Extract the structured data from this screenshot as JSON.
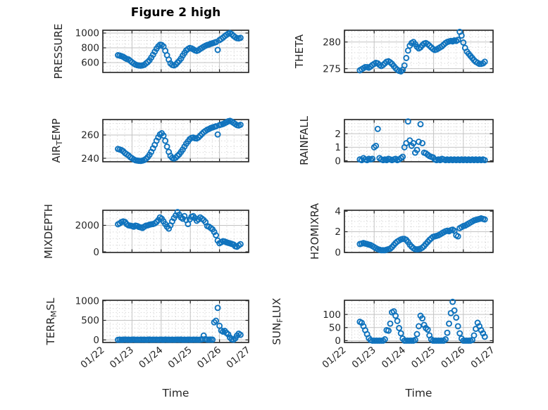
{
  "title": "Figure 2 high",
  "style": {
    "marker_color": "#1073BD",
    "axis_color": "#202020",
    "major_grid_color": "#c3c3c3",
    "minor_grid_color": "#c9c9c9",
    "text_color": "#262626",
    "background": "#ffffff"
  },
  "chart_data": {
    "type": "scatter",
    "marker": "open-circle",
    "xlabel": "Time",
    "x_tick_labels": [
      "01/22",
      "01/23",
      "01/24",
      "01/25",
      "01/26",
      "01/27"
    ],
    "x_tick_positions": [
      0,
      1,
      2,
      3,
      4,
      5
    ],
    "xlim": [
      0,
      5
    ],
    "x_unit": "days after 01/22",
    "grid": "major solid + minor dotted",
    "x": [
      0.52,
      0.58,
      0.64,
      0.7,
      0.76,
      0.82,
      0.88,
      0.94,
      1.0,
      1.06,
      1.12,
      1.18,
      1.24,
      1.3,
      1.36,
      1.42,
      1.48,
      1.54,
      1.6,
      1.66,
      1.72,
      1.78,
      1.84,
      1.9,
      1.96,
      2.02,
      2.08,
      2.14,
      2.2,
      2.26,
      2.32,
      2.38,
      2.44,
      2.5,
      2.56,
      2.62,
      2.68,
      2.74,
      2.8,
      2.86,
      2.92,
      2.98,
      3.04,
      3.1,
      3.16,
      3.22,
      3.28,
      3.34,
      3.4,
      3.46,
      3.52,
      3.58,
      3.64,
      3.7,
      3.76,
      3.82,
      3.88,
      3.94,
      4.0,
      4.06,
      4.12,
      4.18,
      4.24,
      4.3,
      4.36,
      4.42,
      4.48,
      4.54,
      4.6,
      4.66,
      4.72
    ],
    "subplots": [
      {
        "id": "pressure",
        "name": "PRESSURE",
        "row": 0,
        "col": 0,
        "ylabel_parts": [
          [
            "PRESSURE",
            false
          ]
        ],
        "yticks": [
          600,
          800,
          1000
        ],
        "ylim": [
          467,
          1038
        ],
        "minor_step": 50,
        "y": [
          700,
          695,
          688,
          678,
          662,
          650,
          643,
          625,
          605,
          588,
          574,
          565,
          560,
          558,
          562,
          570,
          590,
          608,
          632,
          668,
          706,
          748,
          788,
          820,
          842,
          838,
          818,
          760,
          700,
          640,
          590,
          568,
          562,
          575,
          600,
          625,
          655,
          695,
          730,
          765,
          785,
          798,
          792,
          780,
          766,
          758,
          768,
          786,
          800,
          815,
          828,
          838,
          845,
          855,
          862,
          870,
          878,
          772,
          905,
          920,
          938,
          958,
          975,
          990,
          1000,
          985,
          962,
          945,
          930,
          928,
          935
        ]
      },
      {
        "id": "theta",
        "name": "THETA",
        "row": 0,
        "col": 1,
        "ylabel_parts": [
          [
            "THETA",
            false
          ]
        ],
        "yticks": [
          275,
          280
        ],
        "ylim": [
          274.3,
          282.2
        ],
        "minor_step": 1,
        "y": [
          274.7,
          274.9,
          275.1,
          275.3,
          275.3,
          275.2,
          275.4,
          275.7,
          275.9,
          276.1,
          276.0,
          275.7,
          275.5,
          275.7,
          276.0,
          276.3,
          276.4,
          276.2,
          275.9,
          275.5,
          275.1,
          274.8,
          274.6,
          274.5,
          274.8,
          275.6,
          277.0,
          278.4,
          279.3,
          279.8,
          280.0,
          279.6,
          279.1,
          278.8,
          279.0,
          279.4,
          279.7,
          279.8,
          279.6,
          279.3,
          279.0,
          278.7,
          278.5,
          278.6,
          278.8,
          279.0,
          279.2,
          279.5,
          279.8,
          280.0,
          280.1,
          280.2,
          280.1,
          280.3,
          280.2,
          280.4,
          281.9,
          281.2,
          279.9,
          278.9,
          278.2,
          277.8,
          277.4,
          277.0,
          276.6,
          276.3,
          276.1,
          275.9,
          275.9,
          276.0,
          276.3
        ]
      },
      {
        "id": "airtemp",
        "name": "AIR_TEMP",
        "row": 1,
        "col": 0,
        "ylabel_parts": [
          [
            "AIR",
            false
          ],
          [
            "T",
            true
          ],
          [
            "EMP",
            false
          ]
        ],
        "yticks": [
          240,
          260
        ],
        "ylim": [
          237,
          273.3
        ],
        "minor_step": 5,
        "y": [
          248,
          247.5,
          247,
          246,
          244.5,
          243.5,
          242.5,
          241,
          240,
          239,
          238.3,
          238,
          237.8,
          237.7,
          238,
          238.5,
          239.5,
          241,
          243,
          245.5,
          248.5,
          251.5,
          255,
          258,
          260.5,
          261.5,
          259.5,
          255,
          250,
          245.5,
          242,
          240.3,
          239.8,
          240.5,
          242,
          243.5,
          245.5,
          247.5,
          250,
          252.5,
          254.5,
          256.5,
          257.5,
          257.8,
          257.2,
          257,
          258,
          259.5,
          261,
          262.5,
          263.5,
          264.5,
          265.2,
          266,
          266.5,
          267,
          267.5,
          260.5,
          268.5,
          269,
          269.5,
          270.2,
          271,
          271.8,
          272.2,
          271.5,
          270.5,
          269.5,
          268.5,
          268.2,
          268.8
        ]
      },
      {
        "id": "rainfall",
        "name": "RAINFALL",
        "row": 1,
        "col": 1,
        "ylabel_parts": [
          [
            "RAINFALL",
            false
          ]
        ],
        "yticks": [
          0,
          1,
          2
        ],
        "ylim": [
          -0.07,
          3.04
        ],
        "minor_step": 0.25,
        "y": [
          0.1,
          0.05,
          0.2,
          0.1,
          0.05,
          0.15,
          0.1,
          0.15,
          1.0,
          1.1,
          2.35,
          0.2,
          0.1,
          0.05,
          0.1,
          0.05,
          0.15,
          0.1,
          0.05,
          0.1,
          0.15,
          0.05,
          0.1,
          0.2,
          0.3,
          1.0,
          1.3,
          2.9,
          1.5,
          1.1,
          1.3,
          0.6,
          0.8,
          1.4,
          2.7,
          1.3,
          0.6,
          0.55,
          0.45,
          0.35,
          0.3,
          0.25,
          0.1,
          0.05,
          0.1,
          0.05,
          0.15,
          0.1,
          0.05,
          0.1,
          0.05,
          0.1,
          0.05,
          0.1,
          0.05,
          0.1,
          0.05,
          0.1,
          0.05,
          0.1,
          0.05,
          0.1,
          0.05,
          0.1,
          0.05,
          0.1,
          0.05,
          0.1,
          0.05,
          0.1,
          0.05
        ]
      },
      {
        "id": "mixdepth",
        "name": "MIXDEPTH",
        "row": 2,
        "col": 0,
        "ylabel_parts": [
          [
            "MIXDEPTH",
            false
          ]
        ],
        "yticks": [
          0,
          2000
        ],
        "ylim": [
          -50,
          3140
        ],
        "minor_step": 500,
        "y": [
          2080,
          2150,
          2250,
          2300,
          2250,
          2100,
          2000,
          1980,
          1950,
          1900,
          1980,
          1950,
          1880,
          1850,
          1800,
          1900,
          1980,
          2000,
          2050,
          2080,
          2100,
          2150,
          2250,
          2400,
          2600,
          2500,
          2300,
          2100,
          1900,
          1750,
          2000,
          2300,
          2550,
          2750,
          3000,
          2800,
          2600,
          2500,
          2700,
          2400,
          2100,
          2450,
          2650,
          2700,
          2550,
          2350,
          2450,
          2600,
          2500,
          2400,
          2250,
          1950,
          1900,
          1800,
          1700,
          1500,
          1250,
          850,
          650,
          720,
          800,
          780,
          720,
          680,
          640,
          600,
          550,
          420,
          380,
          480,
          580
        ]
      },
      {
        "id": "h2omixra",
        "name": "H2OMIXRA",
        "row": 2,
        "col": 1,
        "ylabel_parts": [
          [
            "H2OMIXRA",
            false
          ]
        ],
        "yticks": [
          0,
          2,
          4
        ],
        "ylim": [
          -0.02,
          4.09
        ],
        "minor_step": 0.5,
        "y": [
          0.8,
          0.85,
          0.9,
          0.85,
          0.8,
          0.75,
          0.7,
          0.6,
          0.5,
          0.4,
          0.3,
          0.25,
          0.2,
          0.2,
          0.2,
          0.25,
          0.3,
          0.35,
          0.5,
          0.7,
          0.9,
          1.05,
          1.15,
          1.25,
          1.3,
          1.3,
          1.2,
          1.0,
          0.75,
          0.55,
          0.4,
          0.3,
          0.28,
          0.3,
          0.35,
          0.45,
          0.6,
          0.8,
          1.0,
          1.2,
          1.35,
          1.5,
          1.55,
          1.6,
          1.65,
          1.75,
          1.85,
          1.95,
          2.05,
          2.1,
          2.05,
          2.15,
          2.2,
          2.1,
          1.65,
          1.55,
          2.35,
          2.45,
          2.55,
          2.6,
          2.7,
          2.8,
          2.9,
          3.0,
          3.1,
          3.15,
          3.2,
          3.25,
          3.3,
          3.25,
          3.2
        ]
      },
      {
        "id": "terrmsl",
        "name": "TERR_MSL",
        "row": 3,
        "col": 0,
        "ylabel_parts": [
          [
            "TERR",
            false
          ],
          [
            "M",
            true
          ],
          [
            "SL",
            false
          ]
        ],
        "yticks": [
          0,
          500,
          1000
        ],
        "ylim": [
          -66,
          1012
        ],
        "minor_step": 100,
        "y": [
          3,
          8,
          2,
          6,
          10,
          4,
          7,
          2,
          5,
          9,
          3,
          6,
          2,
          8,
          4,
          7,
          3,
          5,
          9,
          2,
          6,
          4,
          8,
          3,
          7,
          5,
          2,
          9,
          4,
          6,
          3,
          8,
          2,
          5,
          7,
          4,
          9,
          3,
          6,
          2,
          8,
          5,
          3,
          7,
          4,
          6,
          2,
          8,
          15,
          110,
          20,
          8,
          5,
          10,
          6,
          450,
          490,
          818,
          360,
          240,
          210,
          230,
          180,
          140,
          60,
          15,
          5,
          40,
          110,
          160,
          130
        ]
      },
      {
        "id": "sunflux",
        "name": "SUN_FLUX",
        "row": 3,
        "col": 1,
        "ylabel_parts": [
          [
            "SUN",
            false
          ],
          [
            "F",
            true
          ],
          [
            "LUX",
            false
          ]
        ],
        "yticks": [
          0,
          50,
          100
        ],
        "ylim": [
          -7,
          154
        ],
        "minor_step": 12.5,
        "y": [
          72,
          68,
          55,
          40,
          25,
          10,
          2,
          0,
          0,
          0,
          0,
          0,
          0,
          0,
          5,
          40,
          38,
          65,
          108,
          112,
          95,
          75,
          48,
          28,
          8,
          0,
          0,
          0,
          0,
          0,
          0,
          3,
          25,
          55,
          95,
          85,
          60,
          48,
          42,
          20,
          5,
          0,
          0,
          0,
          0,
          0,
          0,
          0,
          5,
          30,
          65,
          105,
          148,
          115,
          88,
          55,
          28,
          8,
          0,
          0,
          0,
          0,
          0,
          3,
          20,
          45,
          68,
          55,
          40,
          28,
          15
        ]
      }
    ]
  }
}
